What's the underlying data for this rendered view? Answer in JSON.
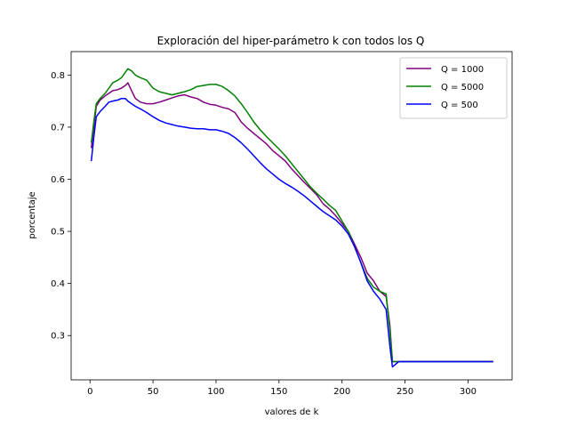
{
  "chart_data": {
    "type": "line",
    "title": "Exploración del hiper-parámetro k con todos los Q",
    "xlabel": "valores de k",
    "ylabel": "porcentaje",
    "xlim": [
      -15,
      335
    ],
    "ylim": [
      0.215,
      0.845
    ],
    "xticks": [
      0,
      50,
      100,
      150,
      200,
      250,
      300
    ],
    "yticks": [
      0.3,
      0.4,
      0.5,
      0.6,
      0.7,
      0.8
    ],
    "grid": false,
    "legend_position": "upper-right",
    "series": [
      {
        "name": "Q = 1000",
        "color": "#800080",
        "points": [
          [
            1,
            0.66
          ],
          [
            3,
            0.7
          ],
          [
            5,
            0.74
          ],
          [
            8,
            0.752
          ],
          [
            12,
            0.76
          ],
          [
            15,
            0.765
          ],
          [
            18,
            0.77
          ],
          [
            22,
            0.772
          ],
          [
            25,
            0.775
          ],
          [
            28,
            0.78
          ],
          [
            30,
            0.785
          ],
          [
            33,
            0.77
          ],
          [
            36,
            0.755
          ],
          [
            40,
            0.748
          ],
          [
            45,
            0.745
          ],
          [
            50,
            0.745
          ],
          [
            55,
            0.748
          ],
          [
            60,
            0.752
          ],
          [
            65,
            0.756
          ],
          [
            70,
            0.76
          ],
          [
            75,
            0.762
          ],
          [
            80,
            0.758
          ],
          [
            85,
            0.755
          ],
          [
            90,
            0.748
          ],
          [
            95,
            0.744
          ],
          [
            100,
            0.742
          ],
          [
            105,
            0.738
          ],
          [
            110,
            0.735
          ],
          [
            115,
            0.728
          ],
          [
            120,
            0.71
          ],
          [
            125,
            0.698
          ],
          [
            130,
            0.688
          ],
          [
            135,
            0.678
          ],
          [
            140,
            0.668
          ],
          [
            145,
            0.655
          ],
          [
            150,
            0.645
          ],
          [
            155,
            0.635
          ],
          [
            160,
            0.62
          ],
          [
            165,
            0.607
          ],
          [
            170,
            0.594
          ],
          [
            175,
            0.582
          ],
          [
            180,
            0.57
          ],
          [
            185,
            0.553
          ],
          [
            190,
            0.543
          ],
          [
            195,
            0.53
          ],
          [
            200,
            0.515
          ],
          [
            205,
            0.5
          ],
          [
            210,
            0.475
          ],
          [
            215,
            0.45
          ],
          [
            220,
            0.42
          ],
          [
            225,
            0.405
          ],
          [
            230,
            0.385
          ],
          [
            235,
            0.375
          ],
          [
            238,
            0.32
          ],
          [
            240,
            0.25
          ],
          [
            250,
            0.25
          ],
          [
            300,
            0.25
          ],
          [
            320,
            0.25
          ]
        ]
      },
      {
        "name": "Q = 5000",
        "color": "#008000",
        "points": [
          [
            1,
            0.67
          ],
          [
            3,
            0.71
          ],
          [
            5,
            0.745
          ],
          [
            8,
            0.755
          ],
          [
            12,
            0.765
          ],
          [
            15,
            0.775
          ],
          [
            18,
            0.785
          ],
          [
            22,
            0.79
          ],
          [
            25,
            0.795
          ],
          [
            28,
            0.805
          ],
          [
            30,
            0.812
          ],
          [
            33,
            0.808
          ],
          [
            36,
            0.8
          ],
          [
            40,
            0.795
          ],
          [
            45,
            0.79
          ],
          [
            50,
            0.775
          ],
          [
            55,
            0.768
          ],
          [
            60,
            0.765
          ],
          [
            65,
            0.762
          ],
          [
            70,
            0.765
          ],
          [
            75,
            0.768
          ],
          [
            80,
            0.772
          ],
          [
            85,
            0.778
          ],
          [
            90,
            0.78
          ],
          [
            95,
            0.782
          ],
          [
            100,
            0.782
          ],
          [
            105,
            0.778
          ],
          [
            110,
            0.77
          ],
          [
            115,
            0.76
          ],
          [
            120,
            0.745
          ],
          [
            125,
            0.728
          ],
          [
            130,
            0.71
          ],
          [
            135,
            0.695
          ],
          [
            140,
            0.682
          ],
          [
            145,
            0.67
          ],
          [
            150,
            0.658
          ],
          [
            155,
            0.645
          ],
          [
            160,
            0.63
          ],
          [
            165,
            0.615
          ],
          [
            170,
            0.6
          ],
          [
            175,
            0.585
          ],
          [
            180,
            0.573
          ],
          [
            185,
            0.562
          ],
          [
            190,
            0.55
          ],
          [
            195,
            0.54
          ],
          [
            200,
            0.52
          ],
          [
            205,
            0.5
          ],
          [
            210,
            0.47
          ],
          [
            215,
            0.44
          ],
          [
            220,
            0.41
          ],
          [
            225,
            0.393
          ],
          [
            230,
            0.385
          ],
          [
            235,
            0.38
          ],
          [
            238,
            0.31
          ],
          [
            240,
            0.25
          ],
          [
            250,
            0.25
          ],
          [
            300,
            0.25
          ],
          [
            320,
            0.25
          ]
        ]
      },
      {
        "name": "Q = 500",
        "color": "#0000ff",
        "points": [
          [
            1,
            0.635
          ],
          [
            3,
            0.68
          ],
          [
            5,
            0.72
          ],
          [
            8,
            0.73
          ],
          [
            12,
            0.74
          ],
          [
            15,
            0.748
          ],
          [
            18,
            0.75
          ],
          [
            22,
            0.752
          ],
          [
            25,
            0.755
          ],
          [
            28,
            0.755
          ],
          [
            30,
            0.75
          ],
          [
            33,
            0.745
          ],
          [
            36,
            0.74
          ],
          [
            40,
            0.735
          ],
          [
            45,
            0.728
          ],
          [
            50,
            0.72
          ],
          [
            55,
            0.713
          ],
          [
            60,
            0.708
          ],
          [
            65,
            0.705
          ],
          [
            70,
            0.702
          ],
          [
            75,
            0.7
          ],
          [
            80,
            0.698
          ],
          [
            85,
            0.697
          ],
          [
            90,
            0.697
          ],
          [
            95,
            0.695
          ],
          [
            100,
            0.695
          ],
          [
            105,
            0.692
          ],
          [
            110,
            0.688
          ],
          [
            115,
            0.68
          ],
          [
            120,
            0.67
          ],
          [
            125,
            0.658
          ],
          [
            130,
            0.645
          ],
          [
            135,
            0.632
          ],
          [
            140,
            0.62
          ],
          [
            145,
            0.61
          ],
          [
            150,
            0.6
          ],
          [
            155,
            0.592
          ],
          [
            160,
            0.585
          ],
          [
            165,
            0.577
          ],
          [
            170,
            0.568
          ],
          [
            175,
            0.558
          ],
          [
            180,
            0.548
          ],
          [
            185,
            0.538
          ],
          [
            190,
            0.53
          ],
          [
            195,
            0.522
          ],
          [
            200,
            0.51
          ],
          [
            205,
            0.495
          ],
          [
            210,
            0.47
          ],
          [
            215,
            0.44
          ],
          [
            220,
            0.405
          ],
          [
            225,
            0.385
          ],
          [
            230,
            0.37
          ],
          [
            235,
            0.35
          ],
          [
            238,
            0.28
          ],
          [
            240,
            0.24
          ],
          [
            245,
            0.25
          ],
          [
            250,
            0.25
          ],
          [
            300,
            0.25
          ],
          [
            320,
            0.25
          ]
        ]
      }
    ]
  }
}
